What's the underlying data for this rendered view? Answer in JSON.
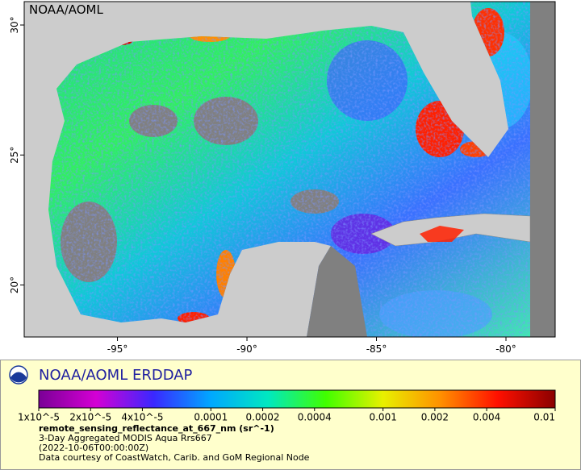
{
  "map": {
    "watermark": "NOAA/AOML",
    "lonlim": [
      -98.6,
      -78.1
    ],
    "latlim": [
      18.0,
      30.9
    ],
    "lon_ticks": [
      {
        "value": -95,
        "label": "-95°"
      },
      {
        "value": -90,
        "label": "-90°"
      },
      {
        "value": -85,
        "label": "-85°"
      },
      {
        "value": -80,
        "label": "-80°"
      }
    ],
    "lat_ticks": [
      {
        "value": 20,
        "label": "20°"
      },
      {
        "value": 25,
        "label": "25°"
      },
      {
        "value": 30,
        "label": "30°"
      }
    ]
  },
  "legend": {
    "title": "NOAA/AOML ERDDAP",
    "log_scale": true,
    "clim": [
      1e-05,
      0.01
    ],
    "colormap": [
      "#7a0096",
      "#d400d4",
      "#3a28ff",
      "#00a8ff",
      "#00e8c0",
      "#40ff00",
      "#e8f000",
      "#ff9000",
      "#ff1000",
      "#8a0000"
    ],
    "colorbar_ticks": [
      {
        "value": 1e-05,
        "label": "1x10^-5"
      },
      {
        "value": 2e-05,
        "label": "2x10^-5"
      },
      {
        "value": 4e-05,
        "label": "4x10^-5"
      },
      0.0001,
      0.0002,
      0.0004,
      0.001,
      0.002,
      0.004,
      0.01
    ],
    "variable": "remote_sensing_reflectance_at_667_nm (sr^-1)",
    "lines": [
      "3-Day Aggregated MODIS Aqua Rrs667",
      "(2022-10-06T00:00:00Z)",
      "Data courtesy of CoastWatch, Carib. and GoM Regional Node"
    ]
  }
}
